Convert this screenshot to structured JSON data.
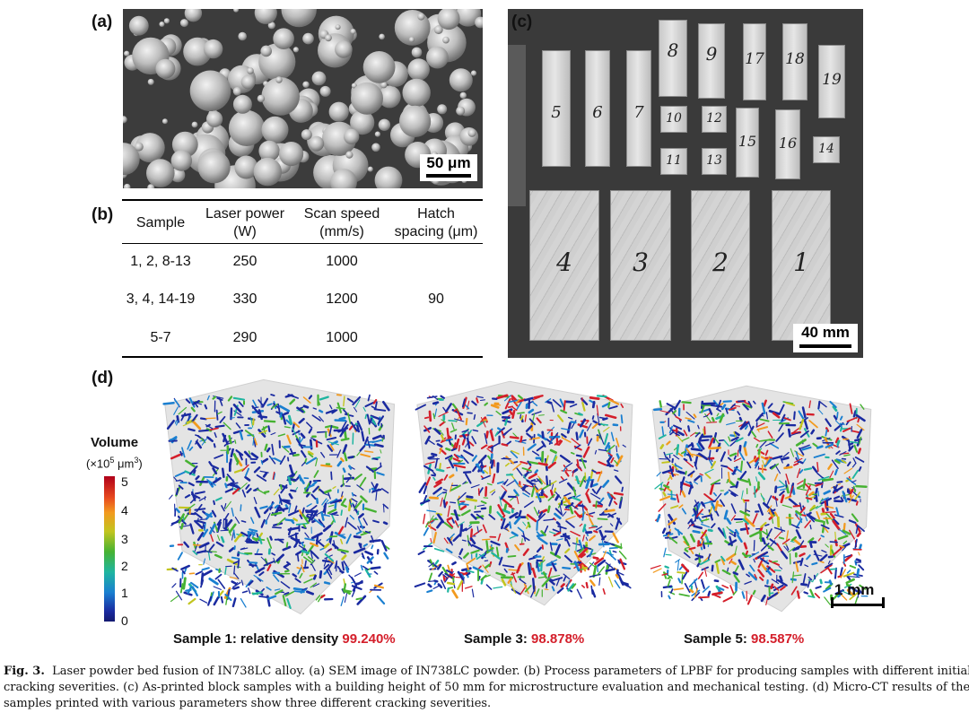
{
  "panels": {
    "a": {
      "label": "(a)",
      "scale": "50 μm"
    },
    "b": {
      "label": "(b)",
      "headers": [
        {
          "line1": "Sample",
          "line2": ""
        },
        {
          "line1": "Laser power",
          "line2": "(W)"
        },
        {
          "line1": "Scan speed",
          "line2": "(mm/s)"
        },
        {
          "line1": "Hatch",
          "line2": "spacing (μm)"
        }
      ],
      "rows": [
        {
          "sample": "1, 2, 8-13",
          "power": "250",
          "speed": "1000"
        },
        {
          "sample": "3, 4, 14-19",
          "power": "330",
          "speed": "1200"
        },
        {
          "sample": "5-7",
          "power": "290",
          "speed": "1000"
        }
      ],
      "hatch": "90"
    },
    "c": {
      "label": "(c)",
      "scale": "40 mm",
      "block_numbers": [
        "5",
        "6",
        "7",
        "8",
        "9",
        "17",
        "18",
        "19",
        "10",
        "12",
        "15",
        "16",
        "14",
        "11",
        "13",
        "4",
        "3",
        "2",
        "1"
      ]
    },
    "d": {
      "label": "(d)",
      "colorbar_title": "Volume",
      "colorbar_unit_prefix": "(×10",
      "colorbar_unit_exp": "5",
      "colorbar_unit_suffix": " μm",
      "colorbar_unit_exp2": "3",
      "colorbar_unit_close": ")",
      "ticks": [
        "5",
        "4",
        "3",
        "2",
        "1",
        "0"
      ],
      "scale": "1 mm",
      "samples": [
        {
          "text": "Sample 1: relative density ",
          "value": "99.240%"
        },
        {
          "text": "Sample 3: ",
          "value": "98.878%"
        },
        {
          "text": "Sample 5: ",
          "value": "98.587%"
        }
      ]
    }
  },
  "caption": {
    "fig": "Fig. 3.",
    "line1": "Laser powder bed fusion of IN738LC alloy. (a) SEM image of IN738LC powder. (b) Process parameters of LPBF for producing samples with different initial",
    "line2": "cracking severities. (c) As-printed block samples with a building height of 50 mm for microstructure evaluation and mechanical testing. (d) Micro-CT results of the",
    "line3": "samples printed with various parameters show three different cracking severities."
  }
}
